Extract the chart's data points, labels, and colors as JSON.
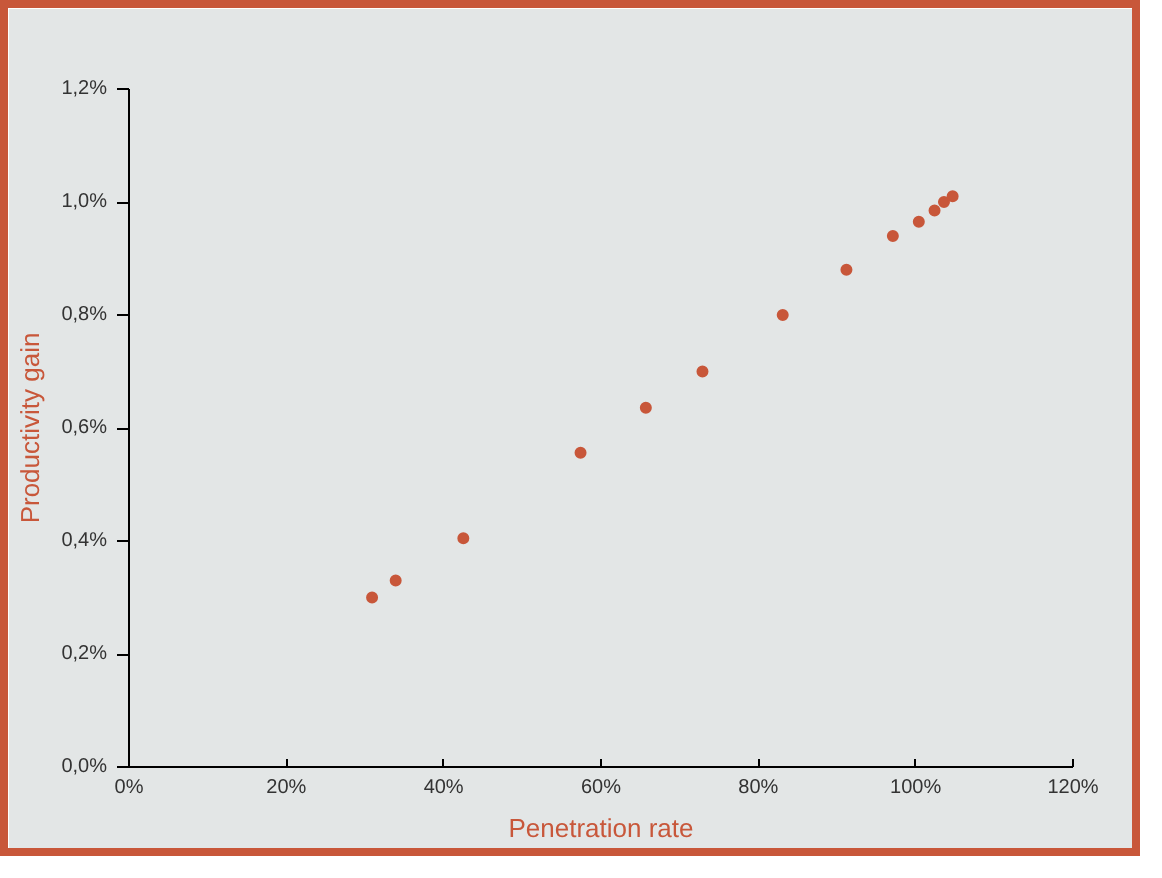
{
  "chart_data": {
    "type": "scatter",
    "xlabel": "Penetration rate",
    "ylabel": "Productivity gain",
    "x": [
      30.9,
      33.9,
      42.5,
      57.4,
      65.7,
      72.9,
      83.1,
      91.2,
      97.1,
      100.4,
      102.4,
      103.6,
      104.7
    ],
    "series": [
      {
        "color": "#c8573a",
        "values": [
          0.3,
          0.33,
          0.405,
          0.556,
          0.636,
          0.7,
          0.8,
          0.88,
          0.94,
          0.965,
          0.985,
          1.0,
          1.01
        ]
      }
    ],
    "xlim": [
      0,
      120
    ],
    "ylim": [
      0,
      1.2
    ],
    "xticks": [
      {
        "value": 0,
        "label": "0%"
      },
      {
        "value": 20,
        "label": "20%"
      },
      {
        "value": 40,
        "label": "40%"
      },
      {
        "value": 60,
        "label": "60%"
      },
      {
        "value": 80,
        "label": "80%"
      },
      {
        "value": 100,
        "label": "100%"
      },
      {
        "value": 120,
        "label": "120%"
      }
    ],
    "yticks": [
      {
        "value": 0,
        "label": "0,0%"
      },
      {
        "value": 0.2,
        "label": "0,2%"
      },
      {
        "value": 0.4,
        "label": "0,4%"
      },
      {
        "value": 0.6,
        "label": "0,6%"
      },
      {
        "value": 0.8,
        "label": "0,8%"
      },
      {
        "value": 1.0,
        "label": "1,0%"
      },
      {
        "value": 1.2,
        "label": "1,2%"
      }
    ],
    "marker": "circle"
  }
}
